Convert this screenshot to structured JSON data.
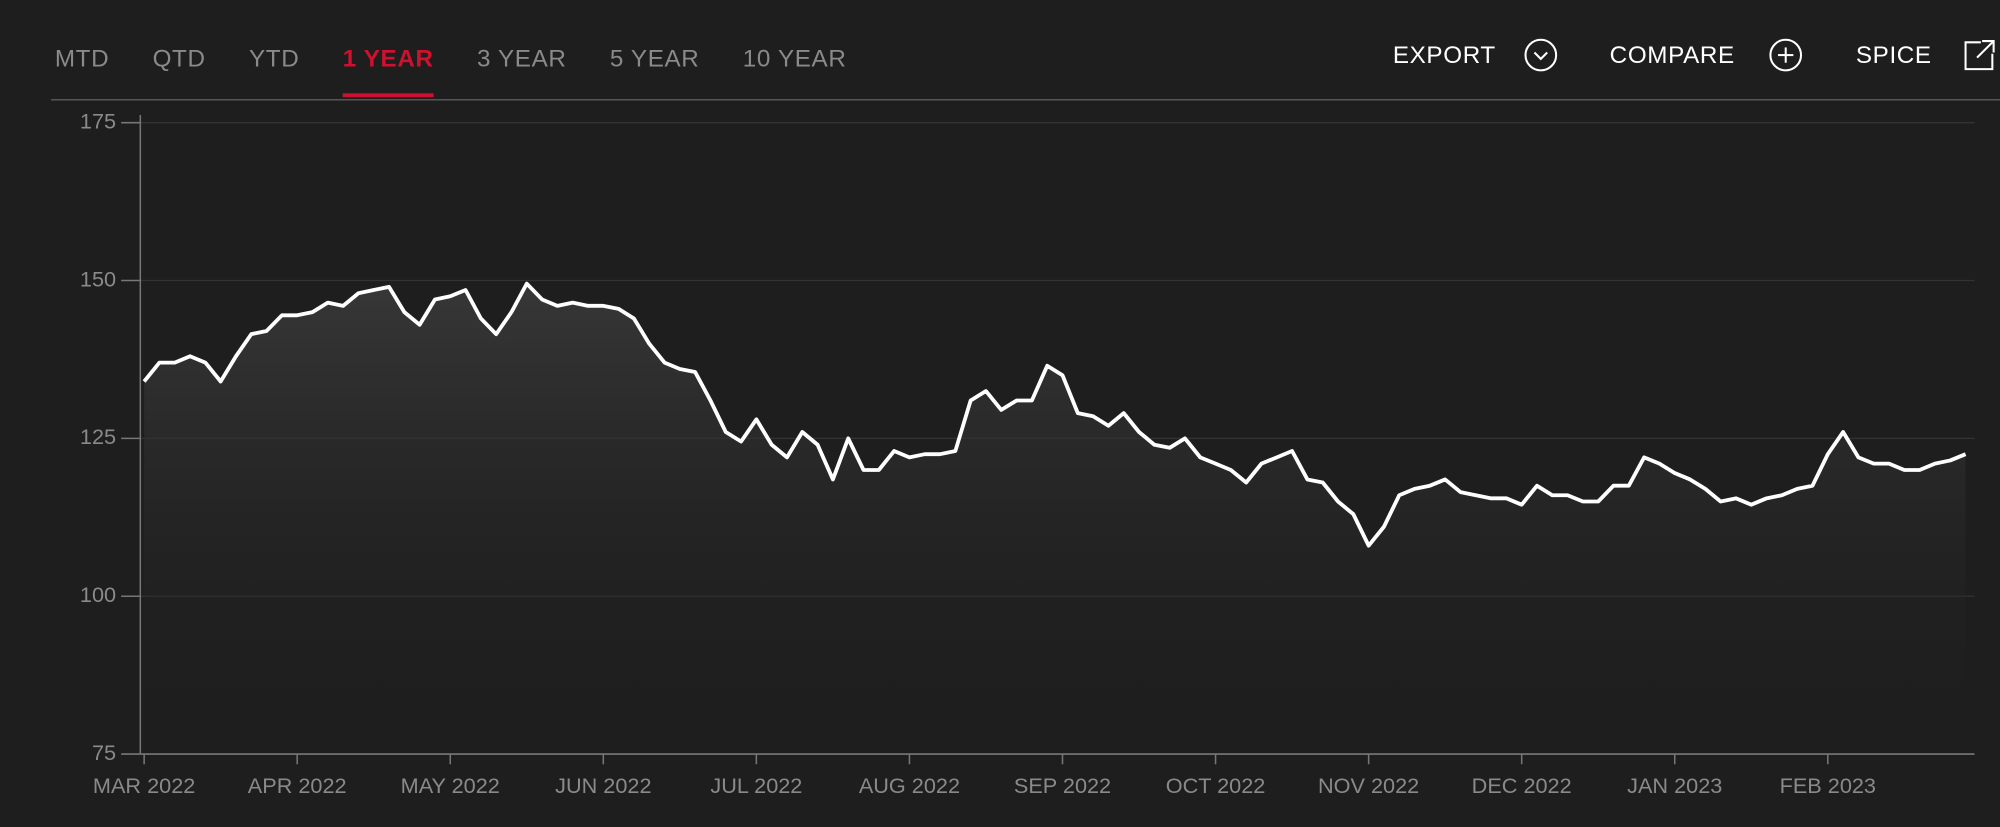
{
  "tabs": [
    {
      "label": "MTD"
    },
    {
      "label": "QTD"
    },
    {
      "label": "YTD"
    },
    {
      "label": "1 YEAR",
      "active": true
    },
    {
      "label": "3 YEAR"
    },
    {
      "label": "5 YEAR"
    },
    {
      "label": "10 YEAR"
    }
  ],
  "actions": [
    "EXPORT",
    "COMPARE",
    "SPICE"
  ],
  "chart_data": {
    "type": "line",
    "color": "#ffffff",
    "grid": true,
    "categories": [
      "MAR 2022",
      null,
      null,
      null,
      null,
      null,
      null,
      null,
      null,
      null,
      "APR 2022",
      null,
      null,
      null,
      null,
      null,
      null,
      null,
      null,
      null,
      "MAY 2022",
      null,
      null,
      null,
      null,
      null,
      null,
      null,
      null,
      null,
      "JUN 2022",
      null,
      null,
      null,
      null,
      null,
      null,
      null,
      null,
      null,
      "JUL 2022",
      null,
      null,
      null,
      null,
      null,
      null,
      null,
      null,
      null,
      "AUG 2022",
      null,
      null,
      null,
      null,
      null,
      null,
      null,
      null,
      null,
      "SEP 2022",
      null,
      null,
      null,
      null,
      null,
      null,
      null,
      null,
      null,
      "OCT 2022",
      null,
      null,
      null,
      null,
      null,
      null,
      null,
      null,
      null,
      "NOV 2022",
      null,
      null,
      null,
      null,
      null,
      null,
      null,
      null,
      null,
      "DEC 2022",
      null,
      null,
      null,
      null,
      null,
      null,
      null,
      null,
      null,
      "JAN 2023",
      null,
      null,
      null,
      null,
      null,
      null,
      null,
      null,
      null,
      "FEB 2023",
      null,
      null,
      null,
      null,
      null,
      null,
      null,
      null,
      null
    ],
    "values": [
      134,
      137,
      137,
      138,
      137,
      134,
      138,
      141.5,
      142,
      144.5,
      144.5,
      145,
      146.5,
      146,
      148,
      148.5,
      149,
      145,
      143,
      147,
      147.5,
      148.5,
      144,
      141.5,
      145,
      149.5,
      147,
      146,
      146.5,
      146,
      146,
      145.5,
      144,
      140,
      137,
      136,
      135.5,
      131,
      126,
      124.5,
      128,
      124,
      122,
      126,
      124,
      118.5,
      125,
      120,
      120,
      123,
      122,
      122.5,
      122.5,
      123,
      131,
      132.5,
      129.5,
      131,
      131,
      136.5,
      135,
      129,
      128.5,
      127,
      129,
      126,
      124,
      123.5,
      125,
      122,
      121,
      120,
      118,
      121,
      122,
      123,
      118.5,
      118,
      115,
      113,
      108,
      111,
      116,
      117,
      117.5,
      118.5,
      116.5,
      116,
      115.5,
      115.5,
      114.5,
      117.5,
      116,
      116,
      115,
      115,
      117.5,
      117.5,
      122,
      121,
      119.5,
      118.5,
      117,
      115,
      115.5,
      114.5,
      115.5,
      116,
      117,
      117.5,
      122.5,
      126,
      122,
      121,
      121,
      120,
      120,
      121,
      121.5,
      122.5
    ],
    "ylim": [
      75,
      175
    ],
    "yticks": [
      75,
      100,
      125,
      150,
      175
    ]
  }
}
